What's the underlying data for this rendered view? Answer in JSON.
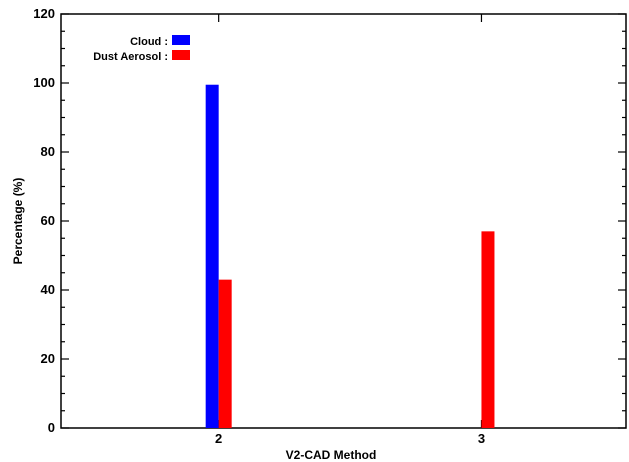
{
  "chart_data": {
    "type": "bar",
    "xlabel": "V2-CAD Method",
    "ylabel": "Percentage (%)",
    "ylim": [
      0,
      120
    ],
    "yticks": [
      "0",
      "20",
      "40",
      "60",
      "80",
      "100",
      "120"
    ],
    "xlim": [
      1.4,
      3.55
    ],
    "categories": [
      "2",
      "3"
    ],
    "category_x": [
      2,
      3
    ],
    "series": [
      {
        "name": "Cloud",
        "legend_label": "Cloud :",
        "color": "#0000ff",
        "values": [
          99.5,
          0
        ]
      },
      {
        "name": "Dust Aerosol",
        "legend_label": "Dust Aerosol :",
        "color": "#ff0000",
        "values": [
          43,
          57
        ]
      }
    ],
    "legend_position": "top-left",
    "grid": false
  }
}
